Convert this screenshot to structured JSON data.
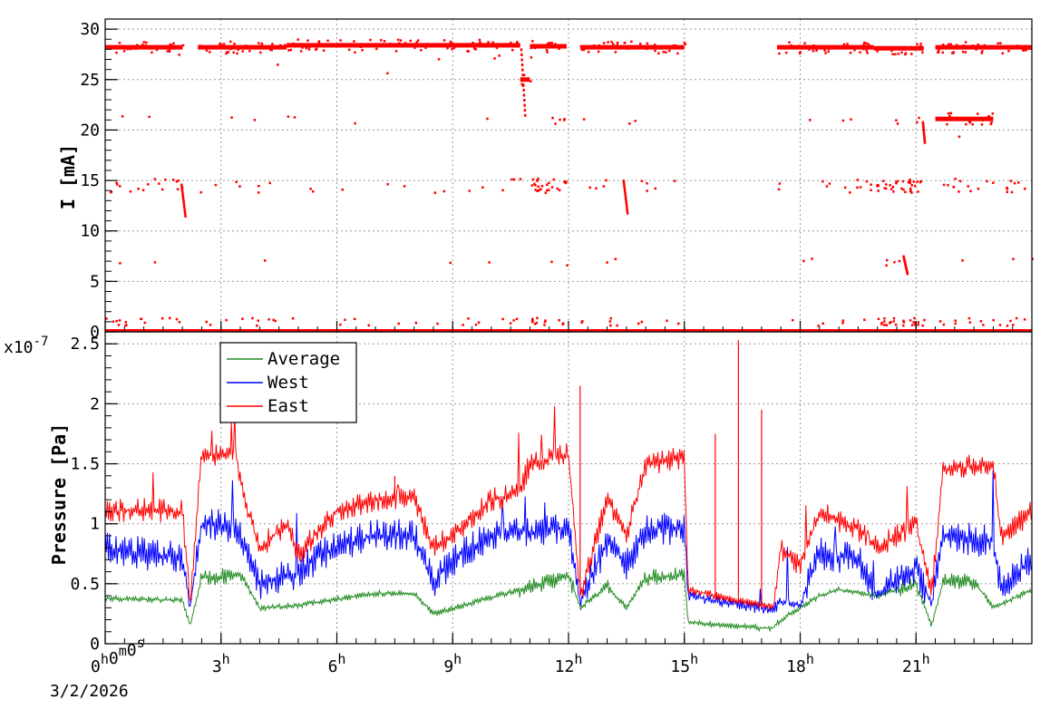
{
  "chart_data": [
    {
      "type": "scatter",
      "ylabel": "I [mA]",
      "ylim": [
        0,
        31
      ],
      "yticks": [
        "0",
        "5",
        "10",
        "15",
        "20",
        "25",
        "30"
      ],
      "xlim_hours": [
        0,
        24
      ],
      "grid": true,
      "series": [
        {
          "color": "#ff0000",
          "levels_mA": [
            28.2,
            21,
            14.5,
            7,
            1,
            0
          ],
          "segments": [
            {
              "start": 0.0,
              "end": 2.0,
              "value": 28.2
            },
            {
              "start": 2.4,
              "end": 4.7,
              "value": 28.2
            },
            {
              "start": 4.7,
              "end": 10.75,
              "value": 28.4
            },
            {
              "start": 10.75,
              "end": 11.0,
              "value": 25.0
            },
            {
              "start": 11.0,
              "end": 11.95,
              "value": 28.3
            },
            {
              "start": 12.3,
              "end": 15.0,
              "value": 28.2
            },
            {
              "start": 17.4,
              "end": 19.9,
              "value": 28.2
            },
            {
              "start": 19.9,
              "end": 20.8,
              "value": 28.1
            },
            {
              "start": 20.8,
              "end": 21.2,
              "value": 28.1
            },
            {
              "start": 21.5,
              "end": 24.0,
              "value": 28.2
            },
            {
              "start": 21.5,
              "end": 23.0,
              "value": 21.1
            },
            {
              "start": 0.0,
              "end": 24.0,
              "value": 0.0
            }
          ]
        }
      ]
    },
    {
      "type": "line",
      "ylabel": "Pressure [Pa]",
      "multiplier": "x10",
      "multiplier_exp": "-7",
      "ylim": [
        0,
        2.6
      ],
      "yticks": [
        "0",
        "0.5",
        "1",
        "1.5",
        "2",
        "2.5"
      ],
      "xlim_hours": [
        0,
        24
      ],
      "xticks": [
        {
          "hour": 0,
          "label": "0",
          "sup": "h",
          "label2": "0",
          "sup2": "m",
          "label3": "0",
          "sup3": "s"
        },
        {
          "hour": 3,
          "label": "3",
          "sup": "h"
        },
        {
          "hour": 6,
          "label": "6",
          "sup": "h"
        },
        {
          "hour": 9,
          "label": "9",
          "sup": "h"
        },
        {
          "hour": 12,
          "label": "12",
          "sup": "h"
        },
        {
          "hour": 15,
          "label": "15",
          "sup": "h"
        },
        {
          "hour": 18,
          "label": "18",
          "sup": "h"
        },
        {
          "hour": 21,
          "label": "21",
          "sup": "h"
        }
      ],
      "date": "3/2/2026",
      "legend_position": "top-left",
      "grid": true,
      "series": [
        {
          "name": "Average",
          "color": "#228b22",
          "points": [
            [
              0,
              0.38
            ],
            [
              2.0,
              0.36
            ],
            [
              2.2,
              0.15
            ],
            [
              2.5,
              0.55
            ],
            [
              3.5,
              0.57
            ],
            [
              4.0,
              0.3
            ],
            [
              5.0,
              0.32
            ],
            [
              7.0,
              0.42
            ],
            [
              8.0,
              0.42
            ],
            [
              8.5,
              0.25
            ],
            [
              10.7,
              0.45
            ],
            [
              11.0,
              0.47
            ],
            [
              12.0,
              0.57
            ],
            [
              12.3,
              0.3
            ],
            [
              13.0,
              0.48
            ],
            [
              13.5,
              0.3
            ],
            [
              14.0,
              0.55
            ],
            [
              15.0,
              0.57
            ],
            [
              15.1,
              0.18
            ],
            [
              17.0,
              0.13
            ],
            [
              17.3,
              0.13
            ],
            [
              17.5,
              0.2
            ],
            [
              18.5,
              0.4
            ],
            [
              19.0,
              0.45
            ],
            [
              20.0,
              0.4
            ],
            [
              21.0,
              0.5
            ],
            [
              21.4,
              0.15
            ],
            [
              21.7,
              0.52
            ],
            [
              22.5,
              0.52
            ],
            [
              23.0,
              0.3
            ],
            [
              24.0,
              0.45
            ]
          ]
        },
        {
          "name": "West",
          "color": "#0000ff",
          "points": [
            [
              0,
              0.8
            ],
            [
              1.0,
              0.75
            ],
            [
              2.0,
              0.72
            ],
            [
              2.2,
              0.3
            ],
            [
              2.5,
              1.0
            ],
            [
              3.4,
              0.97
            ],
            [
              4.0,
              0.5
            ],
            [
              5.0,
              0.6
            ],
            [
              6.0,
              0.82
            ],
            [
              7.0,
              0.9
            ],
            [
              8.0,
              0.9
            ],
            [
              8.5,
              0.5
            ],
            [
              9.0,
              0.7
            ],
            [
              10.0,
              0.92
            ],
            [
              10.7,
              0.95
            ],
            [
              11.0,
              0.92
            ],
            [
              12.0,
              0.97
            ],
            [
              12.3,
              0.35
            ],
            [
              13.0,
              0.85
            ],
            [
              13.5,
              0.65
            ],
            [
              14.0,
              0.95
            ],
            [
              15.0,
              0.97
            ],
            [
              15.1,
              0.4
            ],
            [
              17.3,
              0.28
            ],
            [
              17.5,
              0.35
            ],
            [
              18.0,
              0.32
            ],
            [
              18.5,
              0.75
            ],
            [
              19.5,
              0.7
            ],
            [
              20.0,
              0.4
            ],
            [
              21.0,
              0.65
            ],
            [
              21.4,
              0.32
            ],
            [
              21.7,
              0.9
            ],
            [
              23.0,
              0.85
            ],
            [
              23.2,
              0.45
            ],
            [
              24.0,
              0.7
            ]
          ]
        },
        {
          "name": "East",
          "color": "#ff0000",
          "points": [
            [
              0,
              1.1
            ],
            [
              1.0,
              1.12
            ],
            [
              2.0,
              1.1
            ],
            [
              2.2,
              0.35
            ],
            [
              2.5,
              1.58
            ],
            [
              3.4,
              1.58
            ],
            [
              3.6,
              1.2
            ],
            [
              4.0,
              0.8
            ],
            [
              4.7,
              1.0
            ],
            [
              5.0,
              0.75
            ],
            [
              6.0,
              1.1
            ],
            [
              7.0,
              1.2
            ],
            [
              8.0,
              1.22
            ],
            [
              8.5,
              0.8
            ],
            [
              9.0,
              0.9
            ],
            [
              10.0,
              1.2
            ],
            [
              10.7,
              1.25
            ],
            [
              11.0,
              1.5
            ],
            [
              12.0,
              1.58
            ],
            [
              12.3,
              0.4
            ],
            [
              13.0,
              1.2
            ],
            [
              13.5,
              0.9
            ],
            [
              14.0,
              1.5
            ],
            [
              15.0,
              1.55
            ],
            [
              15.1,
              0.45
            ],
            [
              17.3,
              0.3
            ],
            [
              17.5,
              0.8
            ],
            [
              18.0,
              0.65
            ],
            [
              18.5,
              1.1
            ],
            [
              19.5,
              0.95
            ],
            [
              20.0,
              0.8
            ],
            [
              21.0,
              1.0
            ],
            [
              21.4,
              0.4
            ],
            [
              21.7,
              1.45
            ],
            [
              23.0,
              1.5
            ],
            [
              23.2,
              0.9
            ],
            [
              24.0,
              1.1
            ]
          ],
          "spikes": [
            [
              12.3,
              2.15
            ],
            [
              15.8,
              1.75
            ],
            [
              16.4,
              2.53
            ],
            [
              17.0,
              1.95
            ],
            [
              11.3,
              1.45
            ],
            [
              7.5,
              1.4
            ]
          ]
        }
      ]
    }
  ]
}
